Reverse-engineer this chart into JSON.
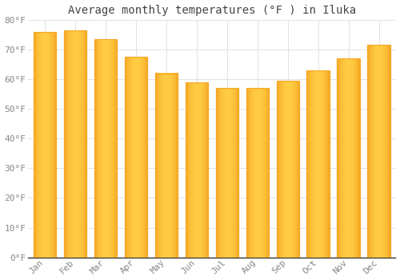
{
  "title": "Average monthly temperatures (°F ) in Iluka",
  "months": [
    "Jan",
    "Feb",
    "Mar",
    "Apr",
    "May",
    "Jun",
    "Jul",
    "Aug",
    "Sep",
    "Oct",
    "Nov",
    "Dec"
  ],
  "values": [
    76.0,
    76.5,
    73.5,
    67.5,
    62.0,
    59.0,
    57.0,
    57.0,
    59.5,
    63.0,
    67.0,
    71.5
  ],
  "ylim": [
    0,
    80
  ],
  "yticks": [
    0,
    10,
    20,
    30,
    40,
    50,
    60,
    70,
    80
  ],
  "ytick_labels": [
    "0°F",
    "10°F",
    "20°F",
    "30°F",
    "40°F",
    "50°F",
    "60°F",
    "70°F",
    "80°F"
  ],
  "bar_color_center": "#FFCC44",
  "bar_color_edge": "#F5A623",
  "background_color": "#FFFFFF",
  "grid_color": "#DDDDDD",
  "title_fontsize": 10,
  "tick_fontsize": 8,
  "tick_color": "#888888",
  "title_color": "#444444",
  "bar_width": 0.75
}
